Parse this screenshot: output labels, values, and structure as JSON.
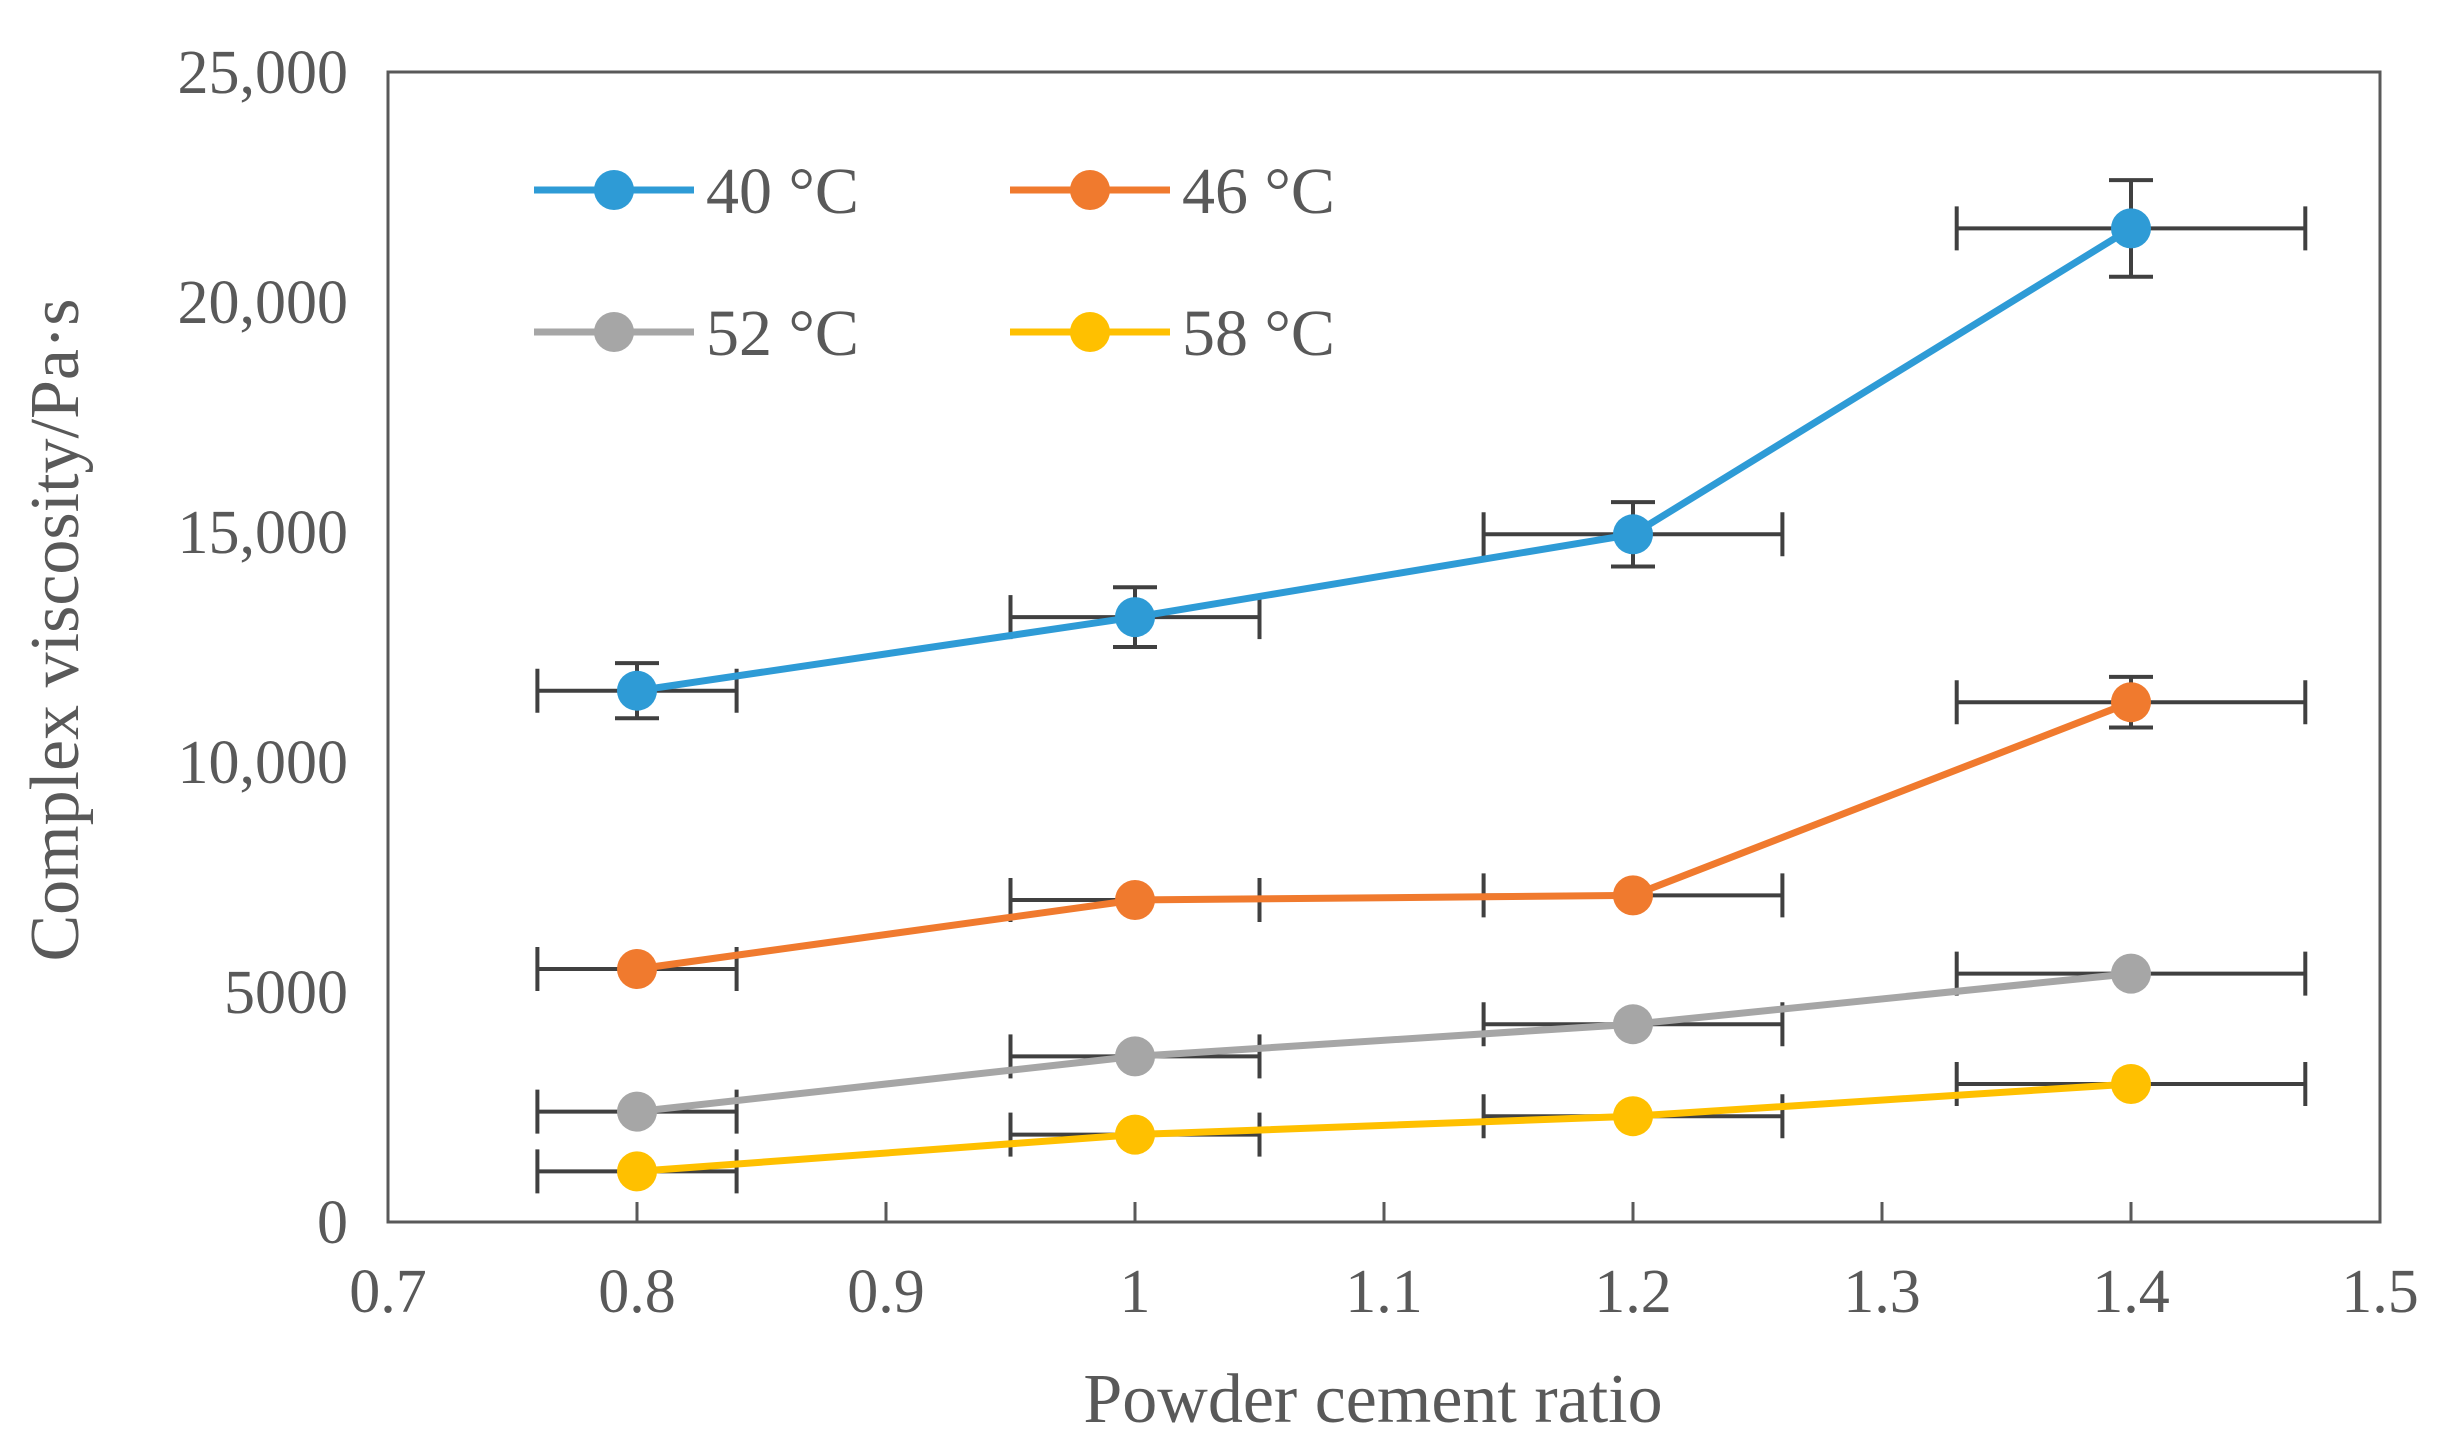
{
  "chart_data": {
    "type": "line",
    "title": "",
    "xlabel": "Powder cement ratio",
    "ylabel": "Complex viscosity/Pa·s",
    "xlim": [
      0.7,
      1.5
    ],
    "ylim": [
      0,
      25000
    ],
    "x_ticks": [
      "0.7",
      "0.8",
      "0.9",
      "1",
      "1.1",
      "1.2",
      "1.3",
      "1.4",
      "1.5"
    ],
    "x_tick_values": [
      0.7,
      0.8,
      0.9,
      1.0,
      1.1,
      1.2,
      1.3,
      1.4,
      1.5
    ],
    "y_ticks": [
      "0",
      "5000",
      "10,000",
      "15,000",
      "20,000",
      "25,000"
    ],
    "y_tick_values": [
      0,
      5000,
      10000,
      15000,
      20000,
      25000
    ],
    "grid": false,
    "legend_position": "top-left",
    "x": [
      0.8,
      1.0,
      1.2,
      1.4
    ],
    "series": [
      {
        "name": "40 °C",
        "color": "#2e9bd6",
        "values": [
          11550,
          13150,
          14950,
          21600
        ],
        "y_err": [
          600,
          650,
          700,
          1050
        ],
        "x_err": [
          0.033,
          0.025,
          0.03,
          0.035
        ]
      },
      {
        "name": "46 °C",
        "color": "#f07a2e",
        "values": [
          5500,
          7000,
          7100,
          11300
        ],
        "y_err": [
          0,
          0,
          0,
          550
        ],
        "x_err": [
          0.033,
          0.025,
          0.03,
          0.035
        ]
      },
      {
        "name": "52 °C",
        "color": "#a6a6a6",
        "values": [
          2400,
          3600,
          4300,
          5400
        ],
        "y_err": [
          0,
          0,
          0,
          0
        ],
        "x_err": [
          0.033,
          0.025,
          0.03,
          0.035
        ]
      },
      {
        "name": "58 °C",
        "color": "#ffc000",
        "values": [
          1100,
          1900,
          2300,
          3000
        ],
        "y_err": [
          0,
          0,
          0,
          0
        ],
        "x_err": [
          0.033,
          0.025,
          0.03,
          0.035
        ]
      }
    ],
    "x_err_bars": [
      {
        "series": "40 °C",
        "x_low": 0.76,
        "x_high": 0.84
      },
      {
        "series": "40 °C",
        "x_low": 0.95,
        "x_high": 1.05
      },
      {
        "series": "40 °C",
        "x_low": 1.14,
        "x_high": 1.26
      },
      {
        "series": "40 °C",
        "x_low": 1.33,
        "x_high": 1.47
      },
      {
        "series": "46 °C",
        "x_low": 0.76,
        "x_high": 0.84
      },
      {
        "series": "46 °C",
        "x_low": 0.95,
        "x_high": 1.05
      },
      {
        "series": "46 °C",
        "x_low": 1.14,
        "x_high": 1.26
      },
      {
        "series": "46 °C",
        "x_low": 1.33,
        "x_high": 1.47
      },
      {
        "series": "52 °C",
        "x_low": 0.76,
        "x_high": 0.84
      },
      {
        "series": "52 °C",
        "x_low": 0.95,
        "x_high": 1.05
      },
      {
        "series": "52 °C",
        "x_low": 1.14,
        "x_high": 1.26
      },
      {
        "series": "52 °C",
        "x_low": 1.33,
        "x_high": 1.47
      },
      {
        "series": "58 °C",
        "x_low": 0.76,
        "x_high": 0.84
      },
      {
        "series": "58 °C",
        "x_low": 0.95,
        "x_high": 1.05
      },
      {
        "series": "58 °C",
        "x_low": 1.14,
        "x_high": 1.26
      },
      {
        "series": "58 °C",
        "x_low": 1.33,
        "x_high": 1.47
      }
    ],
    "colors": {
      "axis": "#595959",
      "error_bar": "#404040",
      "frame": "#595959"
    }
  }
}
